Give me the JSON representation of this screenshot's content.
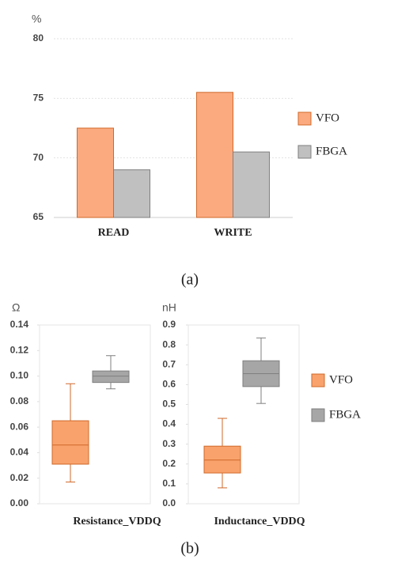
{
  "chart_data": [
    {
      "type": "bar",
      "ylabel": "%",
      "categories": [
        "READ",
        "WRITE"
      ],
      "series": [
        {
          "name": "VFO",
          "color": "#fbaa80",
          "stroke": "#d0692a",
          "values": [
            72.5,
            75.5
          ]
        },
        {
          "name": "FBGA",
          "color": "#c0c0c0",
          "stroke": "#7f7f7f",
          "values": [
            69,
            70.5
          ]
        }
      ],
      "ylim": [
        65,
        80
      ],
      "yticks": [
        65,
        70,
        75,
        80
      ],
      "grid": true,
      "legend": "right",
      "caption": "(a)"
    },
    {
      "type": "box",
      "ylabel": "Ω",
      "xlabel": "Resistance_VDDQ",
      "series": [
        {
          "name": "VFO",
          "color": "#f9a26c",
          "stroke": "#d0692a",
          "min": 0.017,
          "q1": 0.031,
          "median": 0.046,
          "q3": 0.065,
          "max": 0.094
        },
        {
          "name": "FBGA",
          "color": "#a6a6a6",
          "stroke": "#7f7f7f",
          "min": 0.09,
          "q1": 0.095,
          "median": 0.1,
          "q3": 0.104,
          "max": 0.116
        }
      ],
      "ylim": [
        0,
        0.14
      ],
      "yticks": [
        {
          "value": 0,
          "label": "0.00"
        },
        0.02,
        0.04,
        0.06,
        0.08,
        {
          "value": 0.1,
          "label": "0.10"
        },
        0.12,
        0.14
      ]
    },
    {
      "type": "box",
      "ylabel": "nH",
      "xlabel": "Inductance_VDDQ",
      "series": [
        {
          "name": "VFO",
          "color": "#f9a26c",
          "stroke": "#d0692a",
          "min": 0.08,
          "q1": 0.155,
          "median": 0.22,
          "q3": 0.29,
          "max": 0.43
        },
        {
          "name": "FBGA",
          "color": "#a6a6a6",
          "stroke": "#7f7f7f",
          "min": 0.505,
          "q1": 0.59,
          "median": 0.655,
          "q3": 0.72,
          "max": 0.835
        }
      ],
      "ylim": [
        0,
        0.9
      ],
      "yticks": [
        {
          "value": 0,
          "label": "0.0"
        },
        0.1,
        0.2,
        0.3,
        0.4,
        0.5,
        0.6,
        0.7,
        0.8,
        0.9
      ],
      "legend": "right",
      "caption": "(b)"
    }
  ]
}
